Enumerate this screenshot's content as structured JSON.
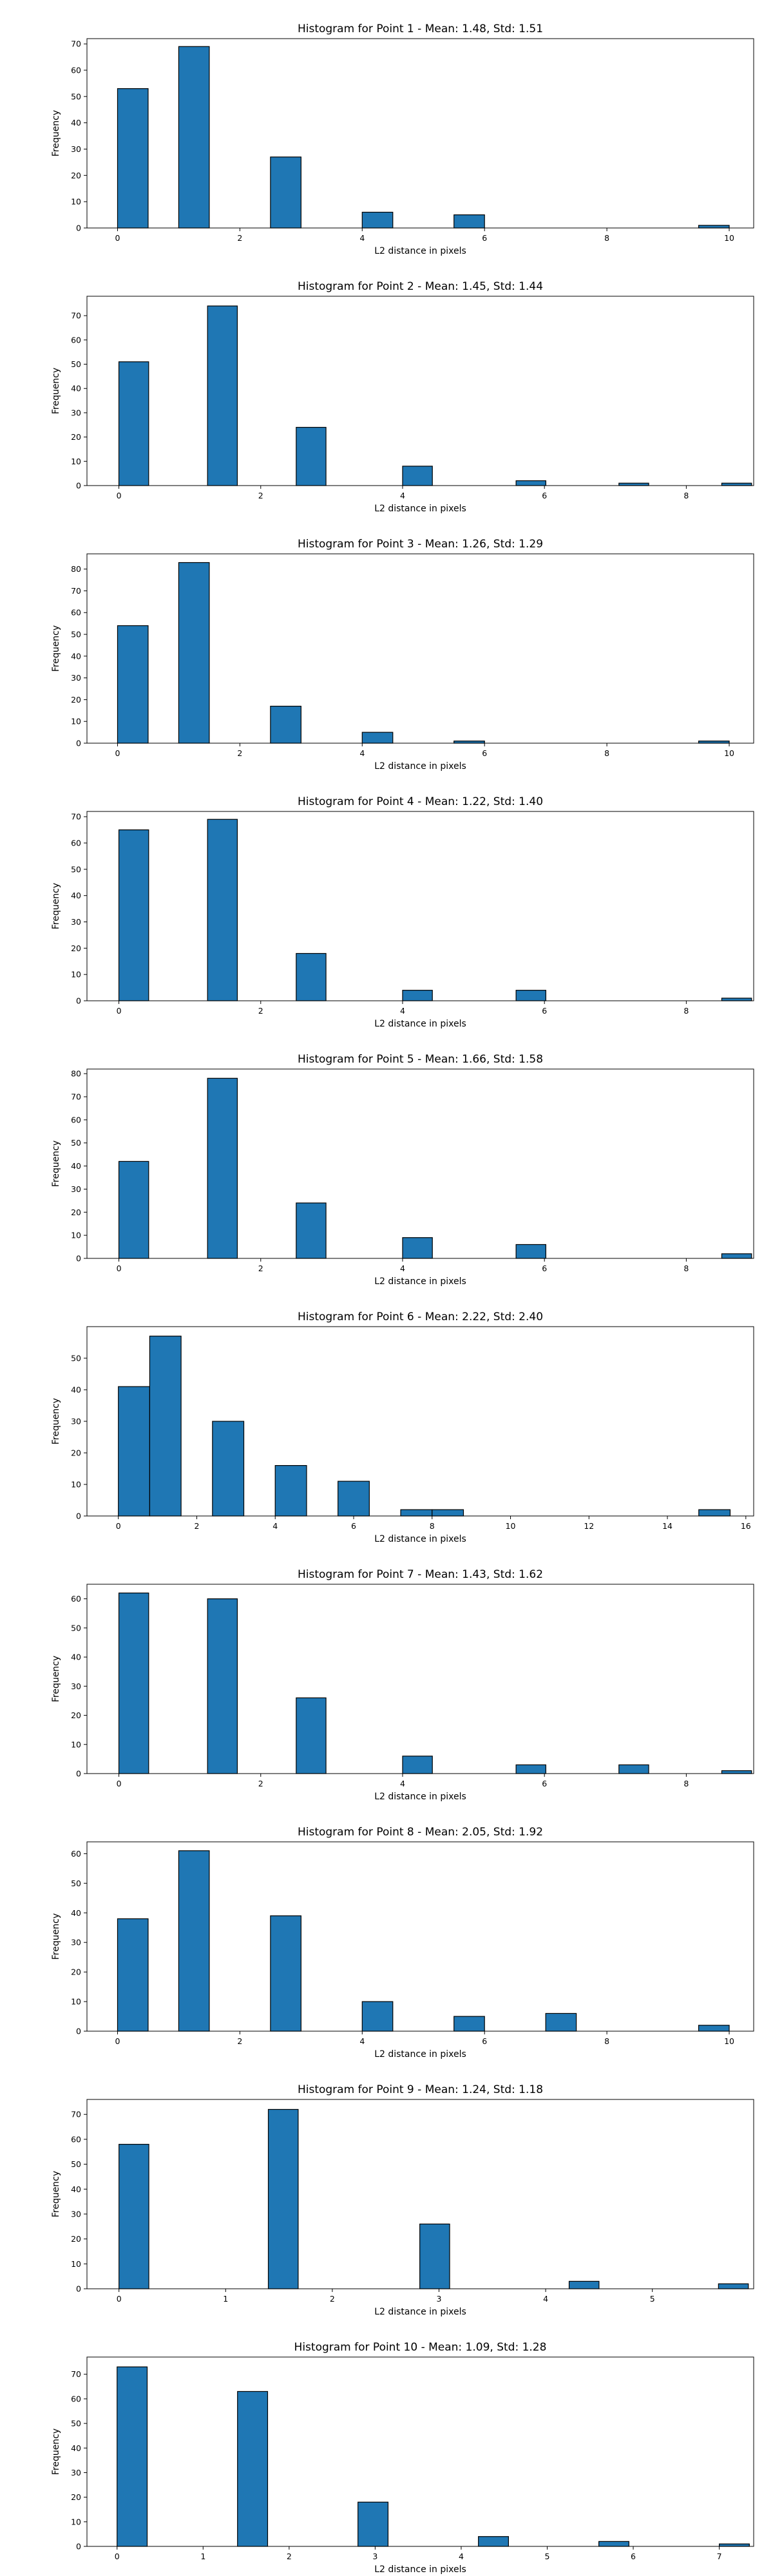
{
  "chart_data": [
    {
      "type": "bar",
      "title": "Histogram for Point 1 - Mean: 1.48, Std: 1.51",
      "xlabel": "L2 distance in pixels",
      "ylabel": "Frequency",
      "xlim": [
        -0.5,
        10.4
      ],
      "ylim": [
        0,
        72
      ],
      "xticks": [
        0,
        2,
        4,
        6,
        8,
        10
      ],
      "yticks": [
        0,
        10,
        20,
        30,
        40,
        50,
        60,
        70
      ],
      "bar_color": "#1f77b4",
      "edge_color": "#000000",
      "bins": [
        {
          "x0": 0.0,
          "x1": 0.5,
          "count": 53
        },
        {
          "x0": 1.0,
          "x1": 1.5,
          "count": 69
        },
        {
          "x0": 2.5,
          "x1": 3.0,
          "count": 27
        },
        {
          "x0": 4.0,
          "x1": 4.5,
          "count": 6
        },
        {
          "x0": 5.5,
          "x1": 6.0,
          "count": 5
        },
        {
          "x0": 9.5,
          "x1": 10.0,
          "count": 1
        }
      ]
    },
    {
      "type": "bar",
      "title": "Histogram for Point 2 - Mean: 1.45, Std: 1.44",
      "xlabel": "L2 distance in pixels",
      "ylabel": "Frequency",
      "xlim": [
        -0.45,
        8.95
      ],
      "ylim": [
        0,
        78
      ],
      "xticks": [
        0,
        2,
        4,
        6,
        8
      ],
      "yticks": [
        0,
        10,
        20,
        30,
        40,
        50,
        60,
        70
      ],
      "bar_color": "#1f77b4",
      "edge_color": "#000000",
      "bins": [
        {
          "x0": 0.0,
          "x1": 0.42,
          "count": 51
        },
        {
          "x0": 1.25,
          "x1": 1.67,
          "count": 74
        },
        {
          "x0": 2.5,
          "x1": 2.92,
          "count": 24
        },
        {
          "x0": 4.0,
          "x1": 4.42,
          "count": 8
        },
        {
          "x0": 5.6,
          "x1": 6.02,
          "count": 2
        },
        {
          "x0": 7.05,
          "x1": 7.47,
          "count": 1
        },
        {
          "x0": 8.5,
          "x1": 8.92,
          "count": 1
        }
      ]
    },
    {
      "type": "bar",
      "title": "Histogram for Point 3 - Mean: 1.26, Std: 1.29",
      "xlabel": "L2 distance in pixels",
      "ylabel": "Frequency",
      "xlim": [
        -0.5,
        10.4
      ],
      "ylim": [
        0,
        87
      ],
      "xticks": [
        0,
        2,
        4,
        6,
        8,
        10
      ],
      "yticks": [
        0,
        10,
        20,
        30,
        40,
        50,
        60,
        70,
        80
      ],
      "bar_color": "#1f77b4",
      "edge_color": "#000000",
      "bins": [
        {
          "x0": 0.0,
          "x1": 0.5,
          "count": 54
        },
        {
          "x0": 1.0,
          "x1": 1.5,
          "count": 83
        },
        {
          "x0": 2.5,
          "x1": 3.0,
          "count": 17
        },
        {
          "x0": 4.0,
          "x1": 4.5,
          "count": 5
        },
        {
          "x0": 5.5,
          "x1": 6.0,
          "count": 1
        },
        {
          "x0": 9.5,
          "x1": 10.0,
          "count": 1
        }
      ]
    },
    {
      "type": "bar",
      "title": "Histogram for Point 4 - Mean: 1.22, Std: 1.40",
      "xlabel": "L2 distance in pixels",
      "ylabel": "Frequency",
      "xlim": [
        -0.45,
        8.95
      ],
      "ylim": [
        0,
        72
      ],
      "xticks": [
        0,
        2,
        4,
        6,
        8
      ],
      "yticks": [
        0,
        10,
        20,
        30,
        40,
        50,
        60,
        70
      ],
      "bar_color": "#1f77b4",
      "edge_color": "#000000",
      "bins": [
        {
          "x0": 0.0,
          "x1": 0.42,
          "count": 65
        },
        {
          "x0": 1.25,
          "x1": 1.67,
          "count": 69
        },
        {
          "x0": 2.5,
          "x1": 2.92,
          "count": 18
        },
        {
          "x0": 4.0,
          "x1": 4.42,
          "count": 4
        },
        {
          "x0": 5.6,
          "x1": 6.02,
          "count": 4
        },
        {
          "x0": 8.5,
          "x1": 8.92,
          "count": 1
        }
      ]
    },
    {
      "type": "bar",
      "title": "Histogram for Point 5 - Mean: 1.66, Std: 1.58",
      "xlabel": "L2 distance in pixels",
      "ylabel": "Frequency",
      "xlim": [
        -0.45,
        8.95
      ],
      "ylim": [
        0,
        82
      ],
      "xticks": [
        0,
        2,
        4,
        6,
        8
      ],
      "yticks": [
        0,
        10,
        20,
        30,
        40,
        50,
        60,
        70,
        80
      ],
      "bar_color": "#1f77b4",
      "edge_color": "#000000",
      "bins": [
        {
          "x0": 0.0,
          "x1": 0.42,
          "count": 42
        },
        {
          "x0": 1.25,
          "x1": 1.67,
          "count": 78
        },
        {
          "x0": 2.5,
          "x1": 2.92,
          "count": 24
        },
        {
          "x0": 4.0,
          "x1": 4.42,
          "count": 9
        },
        {
          "x0": 5.6,
          "x1": 6.02,
          "count": 6
        },
        {
          "x0": 8.5,
          "x1": 8.92,
          "count": 2
        }
      ]
    },
    {
      "type": "bar",
      "title": "Histogram for Point 6 - Mean: 2.22, Std: 2.40",
      "xlabel": "L2 distance in pixels",
      "ylabel": "Frequency",
      "xlim": [
        -0.8,
        16.2
      ],
      "ylim": [
        0,
        60
      ],
      "xticks": [
        0,
        2,
        4,
        6,
        8,
        10,
        12,
        14,
        16
      ],
      "yticks": [
        0,
        10,
        20,
        30,
        40,
        50
      ],
      "bar_color": "#1f77b4",
      "edge_color": "#000000",
      "bins": [
        {
          "x0": 0.0,
          "x1": 0.8,
          "count": 41
        },
        {
          "x0": 0.8,
          "x1": 1.6,
          "count": 57
        },
        {
          "x0": 2.4,
          "x1": 3.2,
          "count": 30
        },
        {
          "x0": 4.0,
          "x1": 4.8,
          "count": 16
        },
        {
          "x0": 5.6,
          "x1": 6.4,
          "count": 11
        },
        {
          "x0": 7.2,
          "x1": 8.0,
          "count": 2
        },
        {
          "x0": 8.0,
          "x1": 8.8,
          "count": 2
        },
        {
          "x0": 14.8,
          "x1": 15.6,
          "count": 2
        }
      ]
    },
    {
      "type": "bar",
      "title": "Histogram for Point 7 - Mean: 1.43, Std: 1.62",
      "xlabel": "L2 distance in pixels",
      "ylabel": "Frequency",
      "xlim": [
        -0.45,
        8.95
      ],
      "ylim": [
        0,
        65
      ],
      "xticks": [
        0,
        2,
        4,
        6,
        8
      ],
      "yticks": [
        0,
        10,
        20,
        30,
        40,
        50,
        60
      ],
      "bar_color": "#1f77b4",
      "edge_color": "#000000",
      "bins": [
        {
          "x0": 0.0,
          "x1": 0.42,
          "count": 62
        },
        {
          "x0": 1.25,
          "x1": 1.67,
          "count": 60
        },
        {
          "x0": 2.5,
          "x1": 2.92,
          "count": 26
        },
        {
          "x0": 4.0,
          "x1": 4.42,
          "count": 6
        },
        {
          "x0": 5.6,
          "x1": 6.02,
          "count": 3
        },
        {
          "x0": 7.05,
          "x1": 7.47,
          "count": 3
        },
        {
          "x0": 8.5,
          "x1": 8.92,
          "count": 1
        }
      ]
    },
    {
      "type": "bar",
      "title": "Histogram for Point 8 - Mean: 2.05, Std: 1.92",
      "xlabel": "L2 distance in pixels",
      "ylabel": "Frequency",
      "xlim": [
        -0.5,
        10.4
      ],
      "ylim": [
        0,
        64
      ],
      "xticks": [
        0,
        2,
        4,
        6,
        8,
        10
      ],
      "yticks": [
        0,
        10,
        20,
        30,
        40,
        50,
        60
      ],
      "bar_color": "#1f77b4",
      "edge_color": "#000000",
      "bins": [
        {
          "x0": 0.0,
          "x1": 0.5,
          "count": 38
        },
        {
          "x0": 1.0,
          "x1": 1.5,
          "count": 61
        },
        {
          "x0": 2.5,
          "x1": 3.0,
          "count": 39
        },
        {
          "x0": 4.0,
          "x1": 4.5,
          "count": 10
        },
        {
          "x0": 5.5,
          "x1": 6.0,
          "count": 5
        },
        {
          "x0": 7.0,
          "x1": 7.5,
          "count": 6
        },
        {
          "x0": 9.5,
          "x1": 10.0,
          "count": 2
        }
      ]
    },
    {
      "type": "bar",
      "title": "Histogram for Point 9 - Mean: 1.24, Std: 1.18",
      "xlabel": "L2 distance in pixels",
      "ylabel": "Frequency",
      "xlim": [
        -0.3,
        5.95
      ],
      "ylim": [
        0,
        76
      ],
      "xticks": [
        0,
        1,
        2,
        3,
        4,
        5
      ],
      "yticks": [
        0,
        10,
        20,
        30,
        40,
        50,
        60,
        70
      ],
      "bar_color": "#1f77b4",
      "edge_color": "#000000",
      "bins": [
        {
          "x0": 0.0,
          "x1": 0.28,
          "count": 58
        },
        {
          "x0": 1.4,
          "x1": 1.68,
          "count": 72
        },
        {
          "x0": 2.82,
          "x1": 3.1,
          "count": 26
        },
        {
          "x0": 4.22,
          "x1": 4.5,
          "count": 3
        },
        {
          "x0": 5.62,
          "x1": 5.9,
          "count": 2
        }
      ]
    },
    {
      "type": "bar",
      "title": "Histogram for Point 10 - Mean: 1.09, Std: 1.28",
      "xlabel": "L2 distance in pixels",
      "ylabel": "Frequency",
      "xlim": [
        -0.35,
        7.4
      ],
      "ylim": [
        0,
        77
      ],
      "xticks": [
        0,
        1,
        2,
        3,
        4,
        5,
        6,
        7
      ],
      "yticks": [
        0,
        10,
        20,
        30,
        40,
        50,
        60,
        70
      ],
      "bar_color": "#1f77b4",
      "edge_color": "#000000",
      "bins": [
        {
          "x0": 0.0,
          "x1": 0.35,
          "count": 73
        },
        {
          "x0": 1.4,
          "x1": 1.75,
          "count": 63
        },
        {
          "x0": 2.8,
          "x1": 3.15,
          "count": 18
        },
        {
          "x0": 4.2,
          "x1": 4.55,
          "count": 4
        },
        {
          "x0": 5.6,
          "x1": 5.95,
          "count": 2
        },
        {
          "x0": 7.0,
          "x1": 7.35,
          "count": 1
        }
      ]
    }
  ]
}
